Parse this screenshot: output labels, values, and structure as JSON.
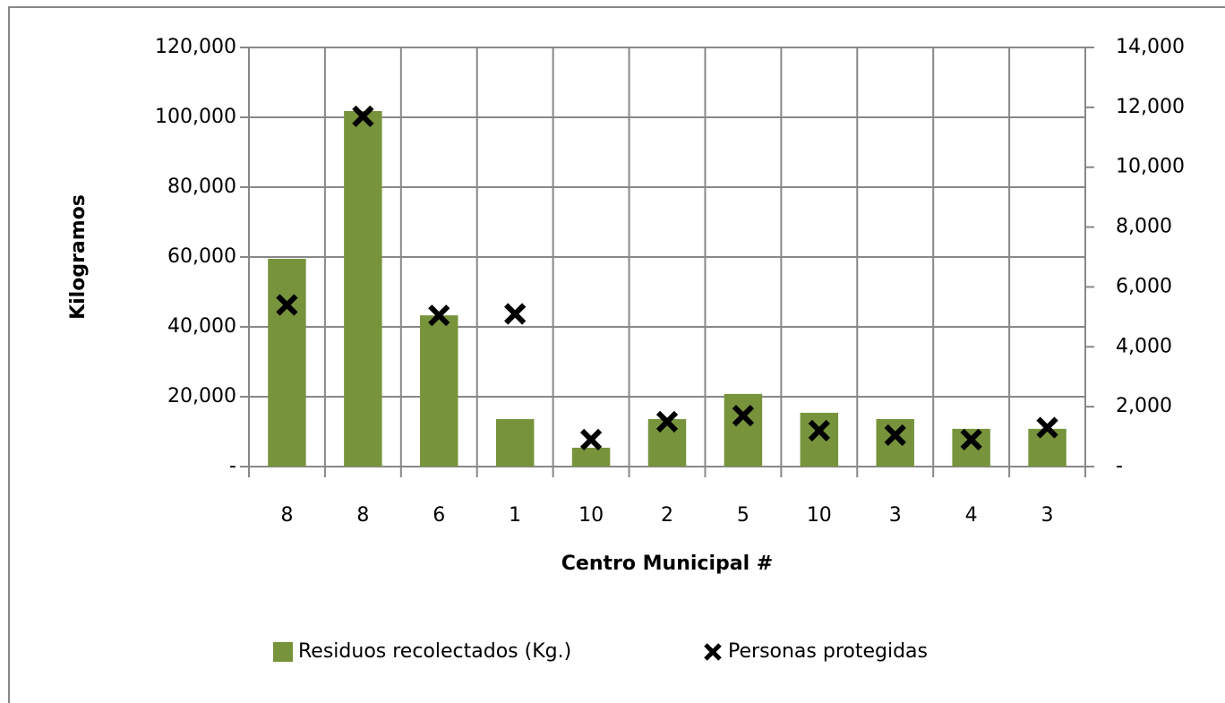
{
  "chart_data": {
    "type": "bar_scatter",
    "ylabel": "Kilogramos",
    "xlabel": "Centro Municipal #",
    "categories": [
      "8",
      "8",
      "6",
      "1",
      "10",
      "2",
      "5",
      "10",
      "3",
      "4",
      "3"
    ],
    "series": [
      {
        "name": "Residuos recolectados (Kg.)",
        "color": "#77933c",
        "type": "bar",
        "values": [
          59500,
          101800,
          43300,
          13600,
          5400,
          13600,
          20800,
          15400,
          13600,
          10800,
          10800
        ]
      },
      {
        "name": "Personas protegidas",
        "color": "#000000",
        "type": "scatter",
        "axis": "y2",
        "values": [
          5400,
          11700,
          5050,
          5100,
          900,
          1500,
          1700,
          1200,
          1050,
          900,
          1300
        ]
      }
    ],
    "ylim": [
      0,
      120000
    ],
    "yticks": [
      {
        "value": 0,
        "label": "-"
      },
      {
        "value": 20000,
        "label": "20,000"
      },
      {
        "value": 40000,
        "label": "40,000"
      },
      {
        "value": 60000,
        "label": "60,000"
      },
      {
        "value": 80000,
        "label": "80,000"
      },
      {
        "value": 100000,
        "label": "100,000"
      },
      {
        "value": 120000,
        "label": "120,000"
      }
    ],
    "y2lim": [
      0,
      14000
    ],
    "y2ticks": [
      {
        "value": 0,
        "label": "-"
      },
      {
        "value": 2000,
        "label": "2,000"
      },
      {
        "value": 4000,
        "label": "4,000"
      },
      {
        "value": 6000,
        "label": "6,000"
      },
      {
        "value": 8000,
        "label": "8,000"
      },
      {
        "value": 10000,
        "label": "10,000"
      },
      {
        "value": 12000,
        "label": "12,000"
      },
      {
        "value": 14000,
        "label": "14,000"
      }
    ],
    "grid": true,
    "legend": "bottom"
  }
}
